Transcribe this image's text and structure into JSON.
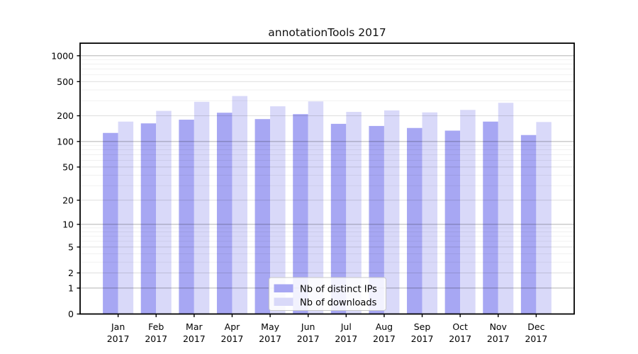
{
  "chart_data": {
    "type": "bar",
    "title": "annotationTools 2017",
    "months": [
      "Jan",
      "Feb",
      "Mar",
      "Apr",
      "May",
      "Jun",
      "Jul",
      "Aug",
      "Sep",
      "Oct",
      "Nov",
      "Dec"
    ],
    "year_label": "2017",
    "categories": [
      "Jan 2017",
      "Feb 2017",
      "Mar 2017",
      "Apr 2017",
      "May 2017",
      "Jun 2017",
      "Jul 2017",
      "Aug 2017",
      "Sep 2017",
      "Oct 2017",
      "Nov 2017",
      "Dec 2017"
    ],
    "series": [
      {
        "key": "distinct-ips",
        "name": "Nb of distinct IPs",
        "color": "#a7a7f3",
        "values": [
          126,
          163,
          180,
          217,
          183,
          209,
          161,
          152,
          144,
          134,
          171,
          119
        ]
      },
      {
        "key": "downloads",
        "name": "Nb of downloads",
        "color": "#d9d9f9",
        "values": [
          171,
          228,
          291,
          340,
          258,
          294,
          222,
          231,
          219,
          234,
          283,
          169
        ]
      }
    ],
    "yscale": "log1p",
    "ylim": [
      0,
      1400
    ],
    "ytick_values": [
      0,
      1,
      2,
      5,
      10,
      20,
      50,
      100,
      200,
      500,
      1000
    ],
    "ytick_labels": [
      "0",
      "1",
      "2",
      "5",
      "10",
      "20",
      "50",
      "100",
      "200",
      "500",
      "1000"
    ],
    "grid": {
      "major": [
        1,
        10,
        100,
        1000
      ],
      "minor_labeled": [
        2,
        5,
        20,
        50,
        200,
        500
      ],
      "minor_faint": [
        3,
        4,
        6,
        7,
        8,
        9,
        30,
        40,
        60,
        70,
        80,
        90,
        300,
        400,
        600,
        700,
        800,
        900
      ]
    },
    "legend": {
      "position": "lower center",
      "entries": [
        "Nb of distinct IPs",
        "Nb of downloads"
      ]
    }
  }
}
